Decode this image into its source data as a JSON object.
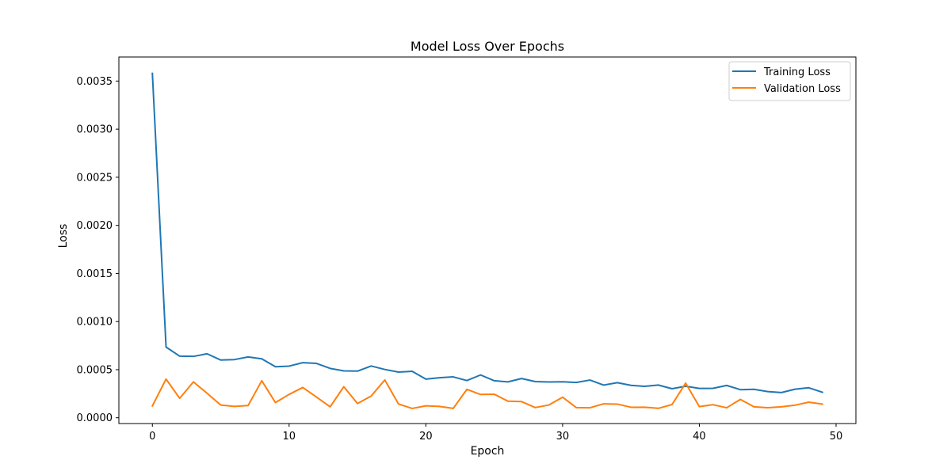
{
  "chart_data": {
    "type": "line",
    "title": "Model Loss Over Epochs",
    "xlabel": "Epoch",
    "ylabel": "Loss",
    "xlim": [
      -2.45,
      51.45
    ],
    "ylim": [
      -6e-05,
      0.00375
    ],
    "x_ticks": [
      0,
      10,
      20,
      30,
      40,
      50
    ],
    "x_tick_labels": [
      "0",
      "10",
      "20",
      "30",
      "40",
      "50"
    ],
    "y_ticks": [
      0,
      0.0005,
      0.001,
      0.0015,
      0.002,
      0.0025,
      0.003,
      0.0035
    ],
    "y_tick_labels": [
      "0.0000",
      "0.0005",
      "0.0010",
      "0.0015",
      "0.0020",
      "0.0025",
      "0.0030",
      "0.0035"
    ],
    "grid": false,
    "legend_position": "top-right",
    "x": [
      0,
      1,
      2,
      3,
      4,
      5,
      6,
      7,
      8,
      9,
      10,
      11,
      12,
      13,
      14,
      15,
      16,
      17,
      18,
      19,
      20,
      21,
      22,
      23,
      24,
      25,
      26,
      27,
      28,
      29,
      30,
      31,
      32,
      33,
      34,
      35,
      36,
      37,
      38,
      39,
      40,
      41,
      42,
      43,
      44,
      45,
      46,
      47,
      48,
      49
    ],
    "series": [
      {
        "name": "Training Loss",
        "color": "#1f77b4",
        "values": [
          0.00358,
          0.000735,
          0.00064,
          0.000638,
          0.000665,
          0.0006,
          0.000605,
          0.000632,
          0.000613,
          0.00053,
          0.000537,
          0.000573,
          0.000565,
          0.000513,
          0.000487,
          0.000485,
          0.000538,
          0.000502,
          0.000475,
          0.000483,
          0.000402,
          0.000416,
          0.000425,
          0.000387,
          0.000445,
          0.000385,
          0.000373,
          0.000408,
          0.000376,
          0.000372,
          0.000374,
          0.000367,
          0.000392,
          0.00034,
          0.000365,
          0.000337,
          0.000327,
          0.00034,
          0.000302,
          0.000328,
          0.000305,
          0.000306,
          0.000336,
          0.000292,
          0.000296,
          0.000272,
          0.000262,
          0.000297,
          0.000312,
          0.000265
        ]
      },
      {
        "name": "Validation Loss",
        "color": "#ff7f0e",
        "values": [
          0.000123,
          0.000402,
          0.000202,
          0.000373,
          0.000255,
          0.000132,
          0.000118,
          0.000127,
          0.000385,
          0.000158,
          0.000243,
          0.000315,
          0.000215,
          0.000114,
          0.000323,
          0.000148,
          0.000226,
          0.000393,
          0.000143,
          9.7e-05,
          0.000124,
          0.000118,
          9.7e-05,
          0.000295,
          0.000242,
          0.000245,
          0.000173,
          0.000168,
          0.000106,
          0.000133,
          0.000214,
          0.000106,
          0.000104,
          0.000145,
          0.000142,
          0.000109,
          0.00011,
          9.8e-05,
          0.000137,
          0.00036,
          0.000116,
          0.000136,
          0.000104,
          0.000191,
          0.000114,
          0.000105,
          0.000114,
          0.000131,
          0.000162,
          0.000142
        ]
      }
    ]
  }
}
